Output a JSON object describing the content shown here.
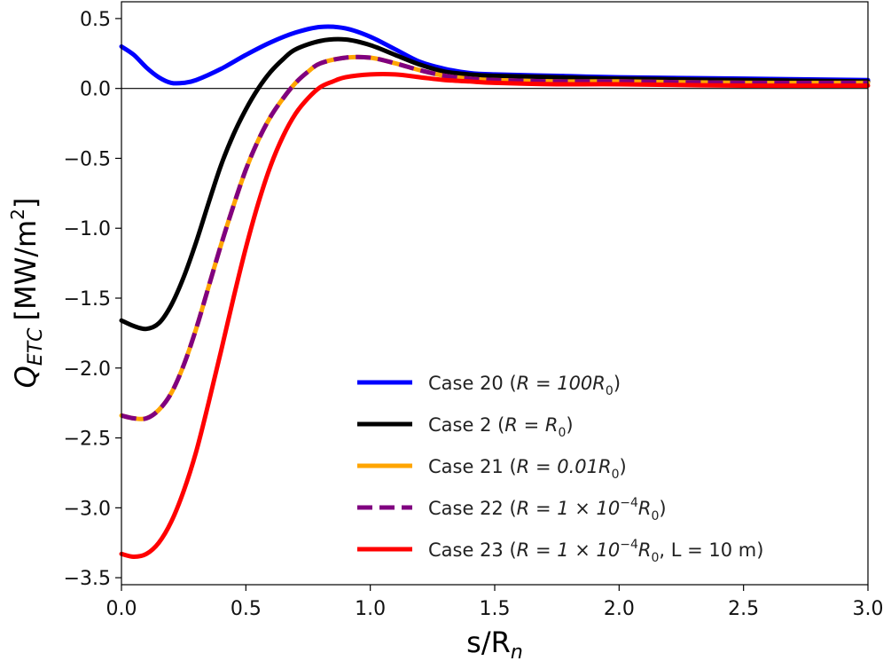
{
  "chart_data": {
    "type": "line",
    "xlabel": "s/R",
    "xlabel_sub": "n",
    "ylabel": "Q",
    "ylabel_sub": "ETC",
    "ylabel_unit": "[MW/m",
    "ylabel_unit_sup": "2",
    "ylabel_unit_close": "]",
    "xlim": [
      0.0,
      3.0
    ],
    "ylim": [
      -3.55,
      0.62
    ],
    "xticks": [
      "0.0",
      "0.5",
      "1.0",
      "1.5",
      "2.0",
      "2.5",
      "3.0"
    ],
    "xtick_values": [
      0.0,
      0.5,
      1.0,
      1.5,
      2.0,
      2.5,
      3.0
    ],
    "yticks": [
      "0.5",
      "0.0",
      "−0.5",
      "−1.0",
      "−1.5",
      "−2.0",
      "−2.5",
      "−3.0",
      "−3.5"
    ],
    "ytick_values": [
      0.5,
      0.0,
      -0.5,
      -1.0,
      -1.5,
      -2.0,
      -2.5,
      -3.0,
      -3.5
    ],
    "zero_line": 0.0,
    "legend_position": "lower-right",
    "series": [
      {
        "name": "Case 20 (R = 100R₀)",
        "legend": {
          "prefix": "Case 20 (",
          "math": "R = 100R",
          "sub": "0",
          "sup": "",
          "math2": "",
          "suffix": ")"
        },
        "color": "#0000ff",
        "style": "solid",
        "x": [
          0.0,
          0.05,
          0.1,
          0.15,
          0.2,
          0.25,
          0.3,
          0.4,
          0.5,
          0.6,
          0.7,
          0.8,
          0.9,
          1.0,
          1.1,
          1.2,
          1.3,
          1.4,
          1.5,
          1.75,
          2.0,
          2.5,
          3.0
        ],
        "y": [
          0.3,
          0.24,
          0.15,
          0.08,
          0.04,
          0.04,
          0.06,
          0.14,
          0.24,
          0.33,
          0.4,
          0.44,
          0.43,
          0.37,
          0.28,
          0.19,
          0.14,
          0.11,
          0.1,
          0.09,
          0.08,
          0.07,
          0.06
        ]
      },
      {
        "name": "Case 2 (R = R₀)",
        "legend": {
          "prefix": "Case 2 (",
          "math": "R = R",
          "sub": "0",
          "sup": "",
          "math2": "",
          "suffix": ")"
        },
        "color": "#000000",
        "style": "solid",
        "x": [
          0.0,
          0.05,
          0.1,
          0.15,
          0.2,
          0.25,
          0.3,
          0.35,
          0.4,
          0.45,
          0.5,
          0.55,
          0.6,
          0.65,
          0.7,
          0.8,
          0.9,
          1.0,
          1.1,
          1.2,
          1.3,
          1.4,
          1.5,
          1.75,
          2.0,
          2.5,
          3.0
        ],
        "y": [
          -1.66,
          -1.7,
          -1.72,
          -1.68,
          -1.55,
          -1.35,
          -1.1,
          -0.82,
          -0.55,
          -0.33,
          -0.15,
          0.0,
          0.12,
          0.21,
          0.28,
          0.34,
          0.35,
          0.31,
          0.24,
          0.17,
          0.12,
          0.1,
          0.09,
          0.08,
          0.07,
          0.06,
          0.05
        ]
      },
      {
        "name": "Case 21 (R = 0.01R₀)",
        "legend": {
          "prefix": "Case 21 (",
          "math": "R = 0.01R",
          "sub": "0",
          "sup": "",
          "math2": "",
          "suffix": ")"
        },
        "color": "#ffa500",
        "style": "solid",
        "x": [
          0.0,
          0.05,
          0.1,
          0.15,
          0.2,
          0.25,
          0.3,
          0.35,
          0.4,
          0.45,
          0.5,
          0.55,
          0.6,
          0.65,
          0.7,
          0.75,
          0.8,
          0.9,
          1.0,
          1.1,
          1.2,
          1.3,
          1.4,
          1.5,
          1.75,
          2.0,
          2.5,
          3.0
        ],
        "y": [
          -2.34,
          -2.36,
          -2.36,
          -2.3,
          -2.18,
          -1.98,
          -1.72,
          -1.42,
          -1.12,
          -0.84,
          -0.58,
          -0.37,
          -0.2,
          -0.07,
          0.04,
          0.12,
          0.18,
          0.22,
          0.22,
          0.18,
          0.13,
          0.09,
          0.07,
          0.06,
          0.05,
          0.05,
          0.04,
          0.04
        ]
      },
      {
        "name": "Case 22 (R = 1 × 10⁻⁴R₀)",
        "legend": {
          "prefix": "Case 22 (",
          "math": "R = 1 × 10",
          "sup": "−4",
          "math2": "R",
          "sub": "0",
          "suffix": ")"
        },
        "color": "#800080",
        "style": "dashed",
        "x": [
          0.0,
          0.05,
          0.1,
          0.15,
          0.2,
          0.25,
          0.3,
          0.35,
          0.4,
          0.45,
          0.5,
          0.55,
          0.6,
          0.65,
          0.7,
          0.75,
          0.8,
          0.9,
          1.0,
          1.1,
          1.2,
          1.3,
          1.4,
          1.5,
          1.75,
          2.0,
          2.5,
          3.0
        ],
        "y": [
          -2.34,
          -2.36,
          -2.36,
          -2.3,
          -2.18,
          -1.98,
          -1.72,
          -1.42,
          -1.12,
          -0.84,
          -0.58,
          -0.37,
          -0.2,
          -0.07,
          0.04,
          0.12,
          0.18,
          0.22,
          0.22,
          0.18,
          0.13,
          0.09,
          0.07,
          0.06,
          0.05,
          0.05,
          0.04,
          0.04
        ]
      },
      {
        "name": "Case 23 (R = 1 × 10⁻⁴R₀, L = 10 m)",
        "legend": {
          "prefix": "Case 23 (",
          "math": "R = 1 × 10",
          "sup": "−4",
          "math2": "R",
          "sub": "0",
          "suffix": ", L = 10 m)"
        },
        "color": "#ff0000",
        "style": "solid",
        "x": [
          0.0,
          0.05,
          0.1,
          0.15,
          0.2,
          0.25,
          0.3,
          0.35,
          0.4,
          0.45,
          0.5,
          0.55,
          0.6,
          0.65,
          0.7,
          0.75,
          0.8,
          0.85,
          0.9,
          1.0,
          1.1,
          1.2,
          1.3,
          1.4,
          1.5,
          1.75,
          2.0,
          2.5,
          3.0
        ],
        "y": [
          -3.33,
          -3.35,
          -3.33,
          -3.25,
          -3.1,
          -2.88,
          -2.6,
          -2.25,
          -1.88,
          -1.5,
          -1.14,
          -0.82,
          -0.55,
          -0.34,
          -0.18,
          -0.07,
          0.01,
          0.05,
          0.08,
          0.1,
          0.1,
          0.08,
          0.06,
          0.05,
          0.04,
          0.03,
          0.03,
          0.02,
          0.02
        ]
      }
    ]
  }
}
